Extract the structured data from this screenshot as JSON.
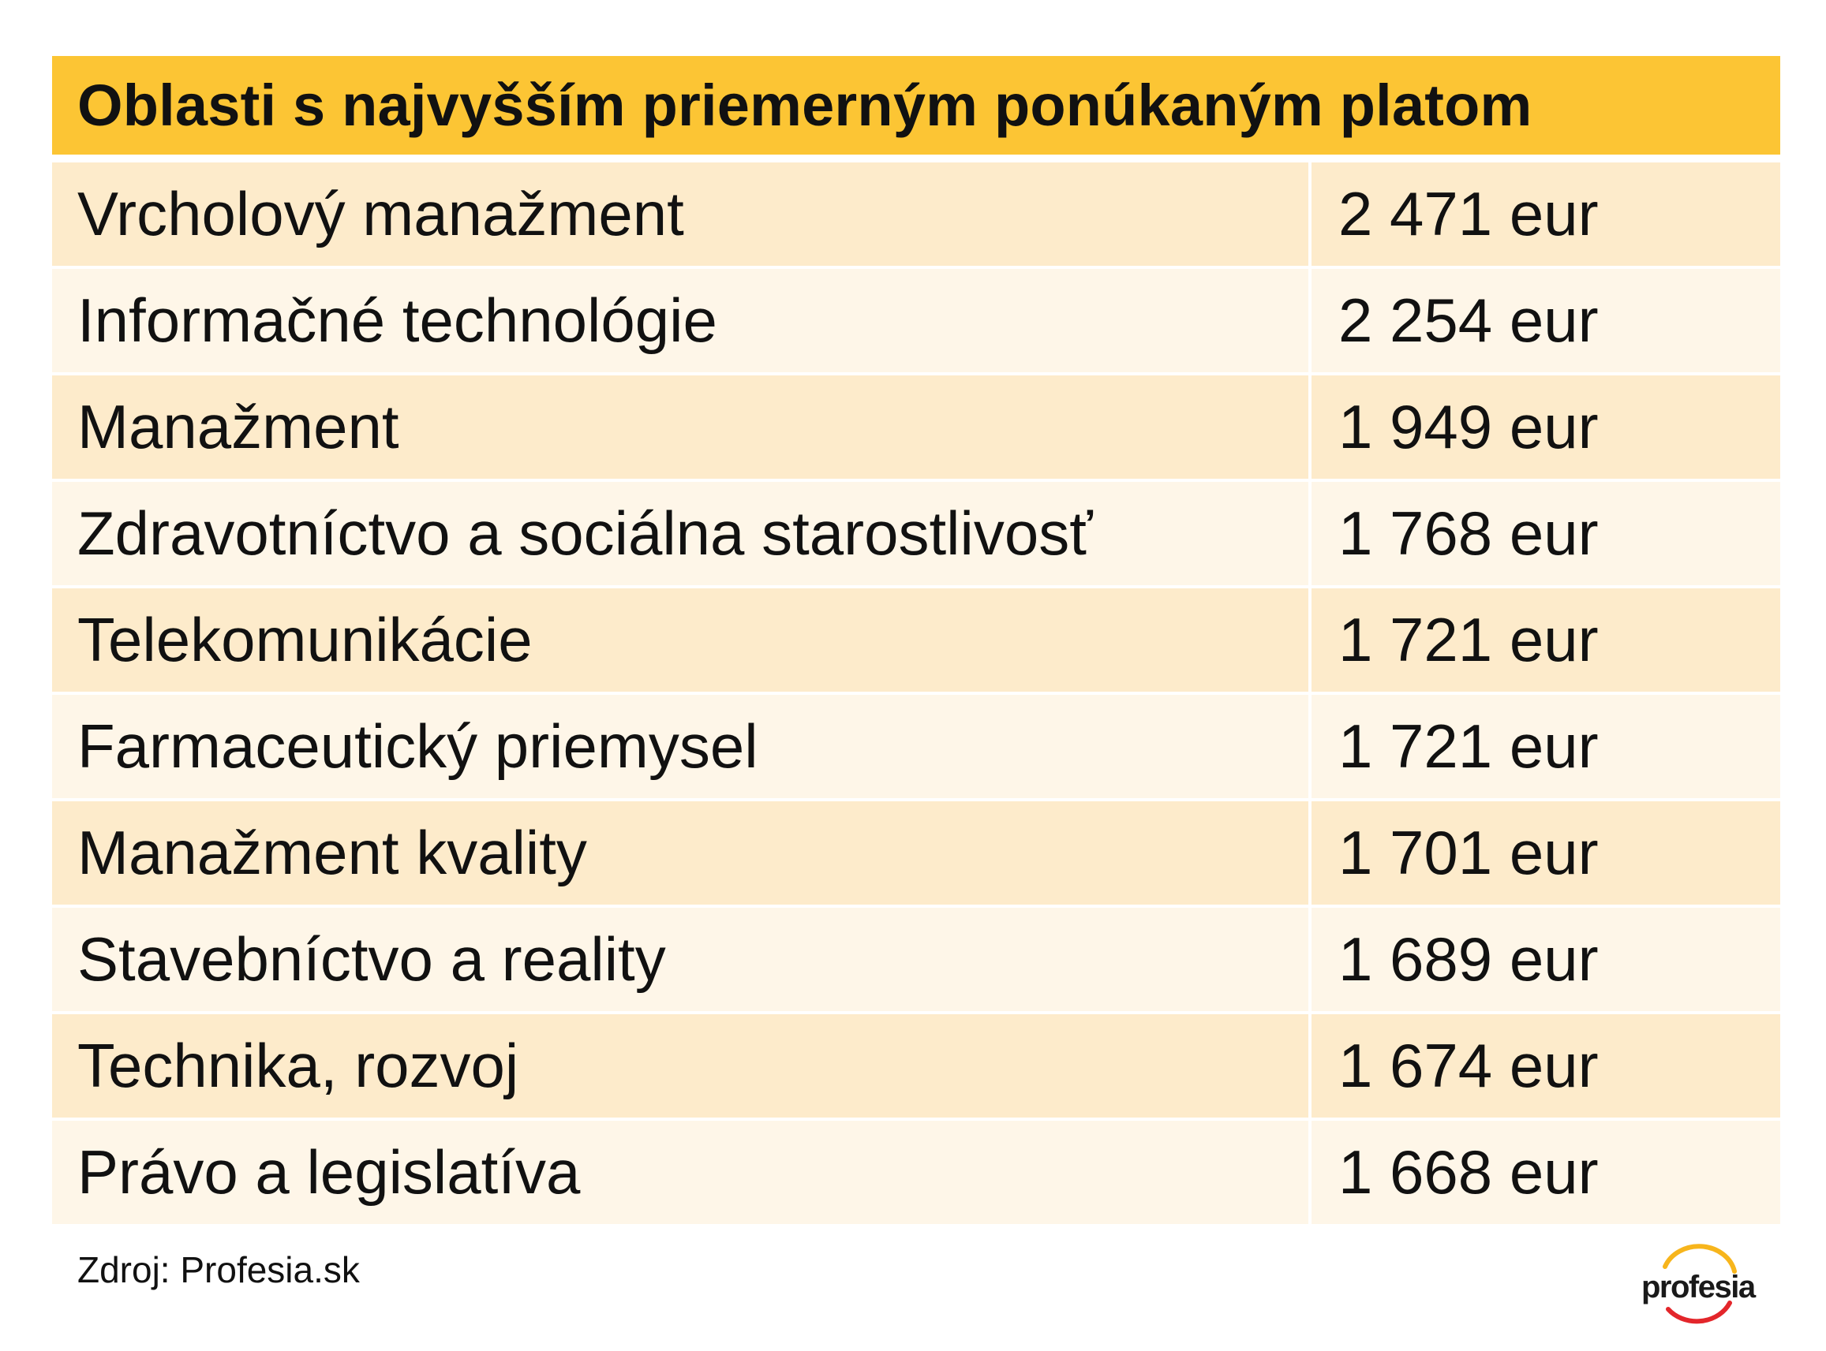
{
  "chart_data": {
    "type": "table",
    "title": "Oblasti s najvyšším priemerným ponúkaným platom",
    "columns": [
      "",
      ""
    ],
    "rows": [
      {
        "label": "Vrcholový manažment",
        "value": 2471,
        "display": "2 471 eur"
      },
      {
        "label": "Informačné technológie",
        "value": 2254,
        "display": "2 254 eur"
      },
      {
        "label": "Manažment",
        "value": 1949,
        "display": "1 949 eur"
      },
      {
        "label": "Zdravotníctvo a sociálna starostlivosť",
        "value": 1768,
        "display": "1 768 eur"
      },
      {
        "label": "Telekomunikácie",
        "value": 1721,
        "display": "1 721 eur"
      },
      {
        "label": "Farmaceutický priemysel",
        "value": 1721,
        "display": "1 721 eur"
      },
      {
        "label": "Manažment kvality",
        "value": 1701,
        "display": "1 701 eur"
      },
      {
        "label": "Stavebníctvo a reality",
        "value": 1689,
        "display": "1 689 eur"
      },
      {
        "label": "Technika, rozvoj",
        "value": 1674,
        "display": "1 674 eur"
      },
      {
        "label": "Právo a legislatíva",
        "value": 1668,
        "display": "1 668 eur"
      }
    ],
    "source": "Zdroj: Profesia.sk"
  },
  "logo": {
    "text": "profesia",
    "icon": "profesia-arc-logo"
  },
  "colors": {
    "header": "#fcc534",
    "row_odd": "#fdebcb",
    "row_even": "#fef6e8",
    "logo_arc_red": "#e3262b",
    "logo_arc_yellow": "#f7b51c"
  }
}
